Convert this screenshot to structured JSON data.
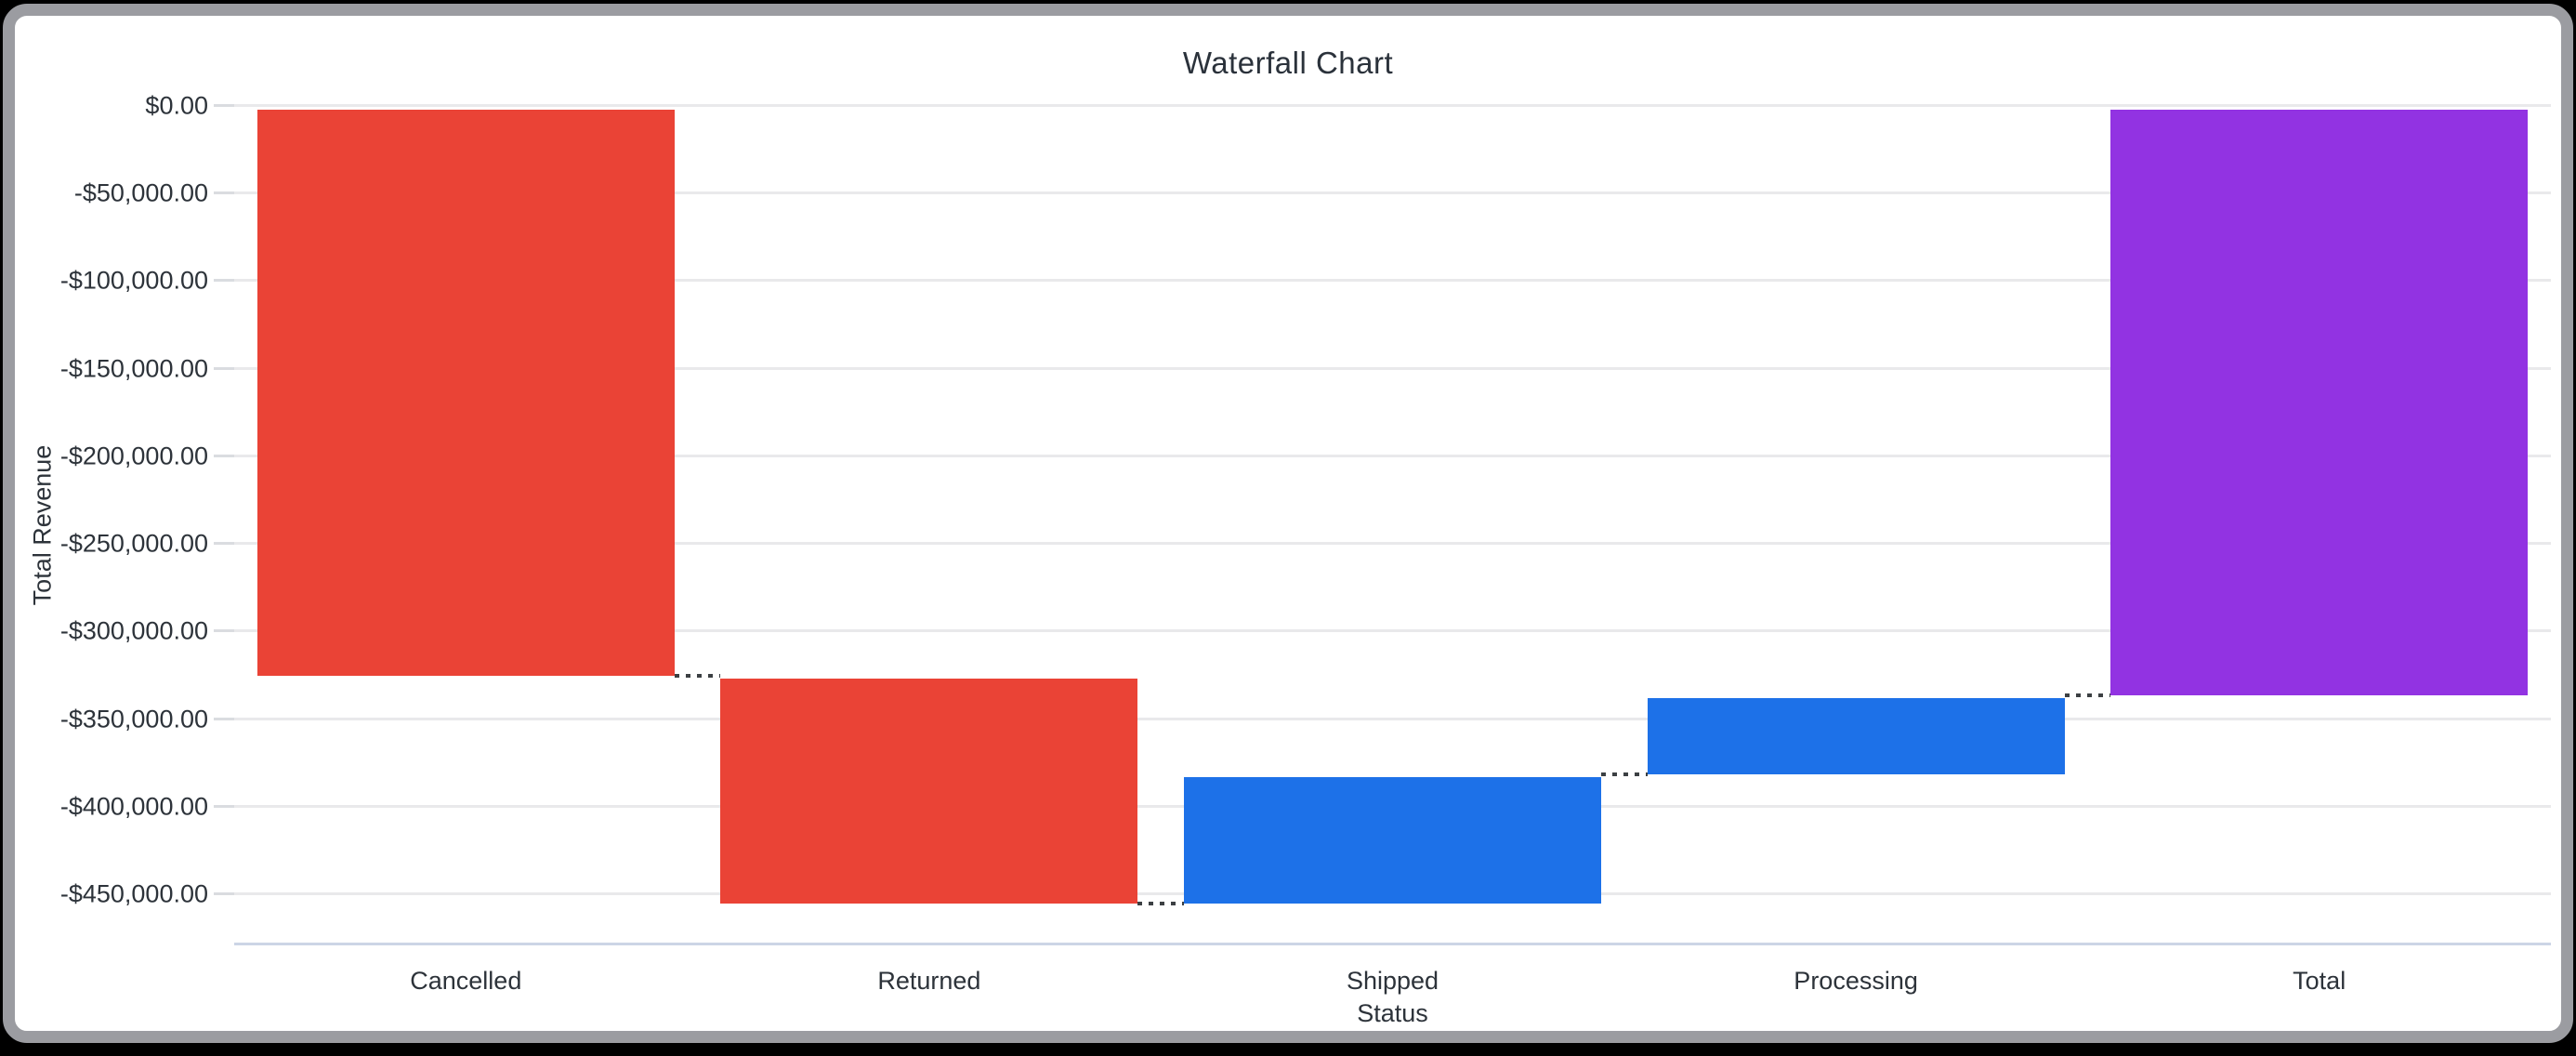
{
  "window": {
    "background": "#000000",
    "card_background": "#ffffff",
    "card_border_color": "#9b9ca1"
  },
  "chart_data": {
    "type": "bar",
    "variant": "waterfall",
    "title": "Waterfall Chart",
    "xlabel": "Status",
    "ylabel": "Total Revenue",
    "categories": [
      "Cancelled",
      "Returned",
      "Shipped",
      "Processing",
      "Total"
    ],
    "values": [
      -325000,
      -130000,
      74000,
      45000,
      -336000
    ],
    "bars": [
      {
        "label": "Cancelled",
        "start": 0,
        "end": -325000,
        "delta": -325000,
        "kind": "decrease",
        "color": "#EA4336"
      },
      {
        "label": "Returned",
        "start": -325000,
        "end": -455000,
        "delta": -130000,
        "kind": "decrease",
        "color": "#EA4336"
      },
      {
        "label": "Shipped",
        "start": -455000,
        "end": -381000,
        "delta": 74000,
        "kind": "increase",
        "color": "#1D71E8"
      },
      {
        "label": "Processing",
        "start": -381000,
        "end": -336000,
        "delta": 45000,
        "kind": "increase",
        "color": "#1D71E8"
      },
      {
        "label": "Total",
        "start": 0,
        "end": -336000,
        "delta": -336000,
        "kind": "total",
        "color": "#9233E2"
      }
    ],
    "y_ticks": [
      "$0.00",
      "-$50,000.00",
      "-$100,000.00",
      "-$150,000.00",
      "-$200,000.00",
      "-$250,000.00",
      "-$300,000.00",
      "-$350,000.00",
      "-$400,000.00",
      "-$450,000.00"
    ],
    "y_tick_values": [
      0,
      -50000,
      -100000,
      -150000,
      -200000,
      -250000,
      -300000,
      -350000,
      -400000,
      -450000
    ],
    "ylim": [
      -478000,
      0
    ],
    "grid": true,
    "legend": "none",
    "colors": {
      "grid": "#e9e9eb",
      "tick": "#dadce0",
      "axis_line": "#ccd5e6",
      "text": "#2d333a",
      "connector": "#3c4043"
    }
  }
}
